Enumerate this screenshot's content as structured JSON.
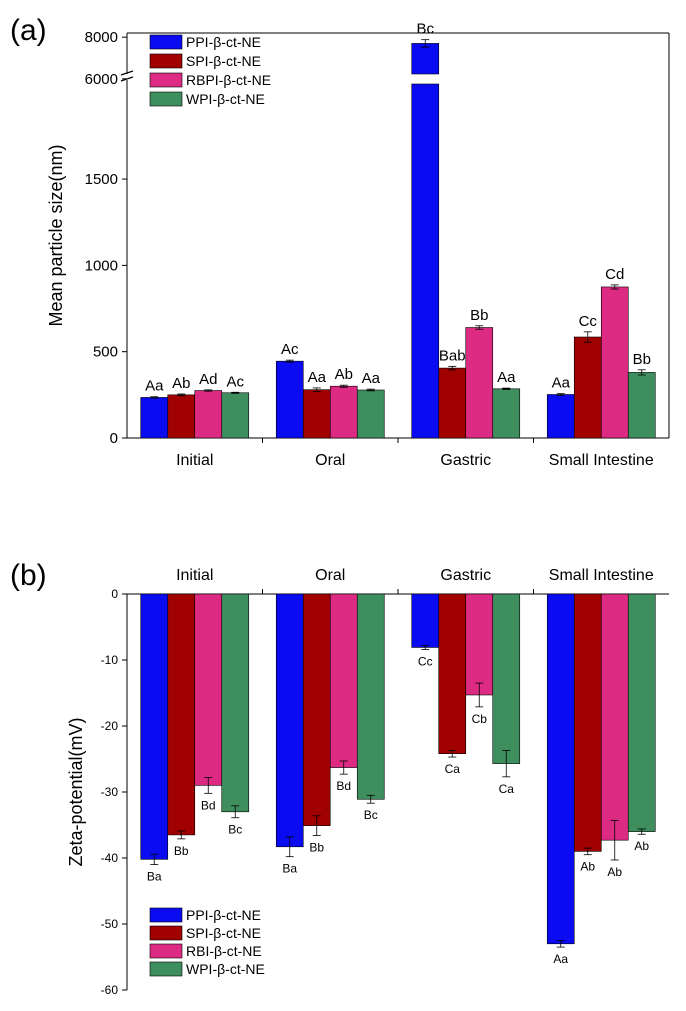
{
  "panel_labels": {
    "a": "(a)",
    "b": "(b)"
  },
  "colors": {
    "PPI": "#0b0bf2",
    "SPI": "#a00000",
    "RBPI": "#dd2a83",
    "WPI": "#3e8e5e"
  },
  "chart_data": [
    {
      "type": "bar",
      "title": "",
      "xlabel": "",
      "ylabel": "Mean particle size(nm)",
      "categories": [
        "Initial",
        "Oral",
        "Gastric",
        "Small Intestine"
      ],
      "axis_break": {
        "lower_range": [
          0,
          1900
        ],
        "upper_range": [
          5800,
          8200
        ],
        "upper_ticks": [
          6000,
          8000
        ]
      },
      "yticks": [
        0,
        500,
        1000,
        1500
      ],
      "ylim": [
        0,
        8200
      ],
      "legend": {
        "position": "top-left"
      },
      "series": [
        {
          "name": "PPI-β-ct-NE",
          "color": "#0b0bf2",
          "values": [
            235,
            445,
            7700,
            252
          ],
          "errors": [
            4,
            6,
            180,
            5
          ],
          "labels": [
            "Aa",
            "Ac",
            "Bc",
            "Aa"
          ]
        },
        {
          "name": "SPI-β-ct-NE",
          "color": "#a00000",
          "values": [
            250,
            280,
            405,
            585
          ],
          "errors": [
            5,
            10,
            10,
            30
          ],
          "labels": [
            "Ab",
            "Aa",
            "Bab",
            "Cc"
          ]
        },
        {
          "name": "RBPI-β-ct-NE",
          "color": "#dd2a83",
          "values": [
            275,
            300,
            640,
            875
          ],
          "errors": [
            4,
            6,
            10,
            12
          ],
          "labels": [
            "Ad",
            "Ab",
            "Bb",
            "Cd"
          ]
        },
        {
          "name": "WPI-β-ct-NE",
          "color": "#3e8e5e",
          "values": [
            262,
            278,
            285,
            380
          ],
          "errors": [
            3,
            5,
            4,
            15
          ],
          "labels": [
            "Ac",
            "Aa",
            "Aa",
            "Bb"
          ]
        }
      ]
    },
    {
      "type": "bar",
      "title": "",
      "xlabel": "",
      "ylabel": "Zeta-potential(mV)",
      "categories": [
        "Initial",
        "Oral",
        "Gastric",
        "Small Intestine"
      ],
      "ylim": [
        -60,
        0
      ],
      "yticks": [
        0,
        -10,
        -20,
        -30,
        -40,
        -50,
        -60
      ],
      "legend": {
        "position": "bottom-left"
      },
      "series": [
        {
          "name": "PPI-β-ct-NE",
          "color": "#0b0bf2",
          "values": [
            -40.2,
            -38.3,
            -8.1,
            -53.0
          ],
          "errors": [
            0.8,
            1.5,
            0.3,
            0.5
          ],
          "labels": [
            "Ba",
            "Ba",
            "Cc",
            "Aa"
          ]
        },
        {
          "name": "SPI-β-ct-NE",
          "color": "#a00000",
          "values": [
            -36.5,
            -35.1,
            -24.2,
            -39.0
          ],
          "errors": [
            0.6,
            1.5,
            0.5,
            0.5
          ],
          "labels": [
            "Bb",
            "Bb",
            "Ca",
            "Ab"
          ]
        },
        {
          "name": "RBI-β-ct-NE",
          "color": "#dd2a83",
          "values": [
            -29.0,
            -26.3,
            -15.3,
            -37.3
          ],
          "errors": [
            1.2,
            1.0,
            1.8,
            3.0
          ],
          "labels": [
            "Bd",
            "Bd",
            "Cb",
            "Ab"
          ]
        },
        {
          "name": "WPI-β-ct-NE",
          "color": "#3e8e5e",
          "values": [
            -33.0,
            -31.1,
            -25.7,
            -36.0
          ],
          "errors": [
            0.9,
            0.6,
            2.0,
            0.4
          ],
          "labels": [
            "Bc",
            "Bc",
            "Ca",
            "Ab"
          ]
        }
      ]
    }
  ]
}
